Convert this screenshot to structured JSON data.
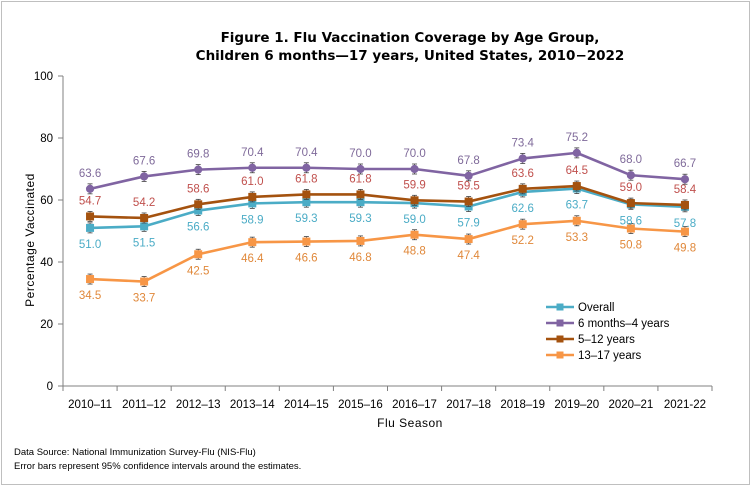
{
  "chart_data": {
    "type": "line",
    "title_line1": "Figure 1. Flu Vaccination Coverage by Age Group,",
    "title_line2": "Children 6 months—17 years, United States, 2010−2022",
    "xlabel": "Flu Season",
    "ylabel": "Percentage Vaccinated",
    "ylim": [
      0,
      100
    ],
    "yticks": [
      0,
      20,
      40,
      60,
      80,
      100
    ],
    "grid": false,
    "legend_position": "bottom-right",
    "categories": [
      "2010–11",
      "2011–12",
      "2012–13",
      "2013–14",
      "2014–15",
      "2015–16",
      "2016–17",
      "2017–18",
      "2018–19",
      "2019–20",
      "2020–21",
      "2021-22"
    ],
    "series": [
      {
        "name": "Overall",
        "color": "#4bacc6",
        "label_color": "#4bacc6",
        "values": [
          51.0,
          51.5,
          56.6,
          58.9,
          59.3,
          59.3,
          59.0,
          57.9,
          62.6,
          63.7,
          58.6,
          57.8
        ],
        "labels": [
          "51.0",
          "51.5",
          "56.6",
          "58.9",
          "59.3",
          "59.3",
          "59.0",
          "57.9",
          "62.6",
          "63.7",
          "58.6",
          "57.8"
        ],
        "label_side": [
          "below",
          "below",
          "below",
          "below",
          "below",
          "below",
          "below",
          "below",
          "below",
          "below",
          "below",
          "below"
        ]
      },
      {
        "name": "6 months–4 years",
        "color": "#8064a2",
        "label_color": "#7f6a9a",
        "values": [
          63.6,
          67.6,
          69.8,
          70.4,
          70.4,
          70.0,
          70.0,
          67.8,
          73.4,
          75.2,
          68.0,
          66.7
        ],
        "labels": [
          "63.6",
          "67.6",
          "69.8",
          "70.4",
          "70.4",
          "70.0",
          "70.0",
          "67.8",
          "73.4",
          "75.2",
          "68.0",
          "66.7"
        ],
        "label_side": [
          "above",
          "above",
          "above",
          "above",
          "above",
          "above",
          "above",
          "above",
          "above",
          "above",
          "above",
          "above"
        ]
      },
      {
        "name": "5–12 years",
        "color": "#a4520f",
        "label_color": "#c0504d",
        "values": [
          54.7,
          54.2,
          58.6,
          61.0,
          61.8,
          61.8,
          59.9,
          59.5,
          63.6,
          64.5,
          59.0,
          58.4
        ],
        "labels": [
          "54.7",
          "54.2",
          "58.6",
          "61.0",
          "61.8",
          "61.8",
          "59.9",
          "59.5",
          "63.6",
          "64.5",
          "59.0",
          "58.4"
        ],
        "label_side": [
          "above",
          "above",
          "above",
          "above",
          "above",
          "above",
          "above",
          "above",
          "above",
          "above",
          "above",
          "above"
        ]
      },
      {
        "name": "13–17 years",
        "color": "#f79646",
        "label_color": "#e0883a",
        "values": [
          34.5,
          33.7,
          42.5,
          46.4,
          46.6,
          46.8,
          48.8,
          47.4,
          52.2,
          53.3,
          50.8,
          49.8
        ],
        "labels": [
          "34.5",
          "33.7",
          "42.5",
          "46.4",
          "46.6",
          "46.8",
          "48.8",
          "47.4",
          "52.2",
          "53.3",
          "50.8",
          "49.8"
        ],
        "label_side": [
          "below",
          "below",
          "below",
          "below",
          "below",
          "below",
          "below",
          "below",
          "below",
          "below",
          "below",
          "below"
        ]
      }
    ]
  },
  "footnotes": {
    "source": "Data Source: National Immunization Survey-Flu (NIS-Flu)",
    "error_bars": "Error bars represent 95% confidence intervals around the estimates."
  }
}
